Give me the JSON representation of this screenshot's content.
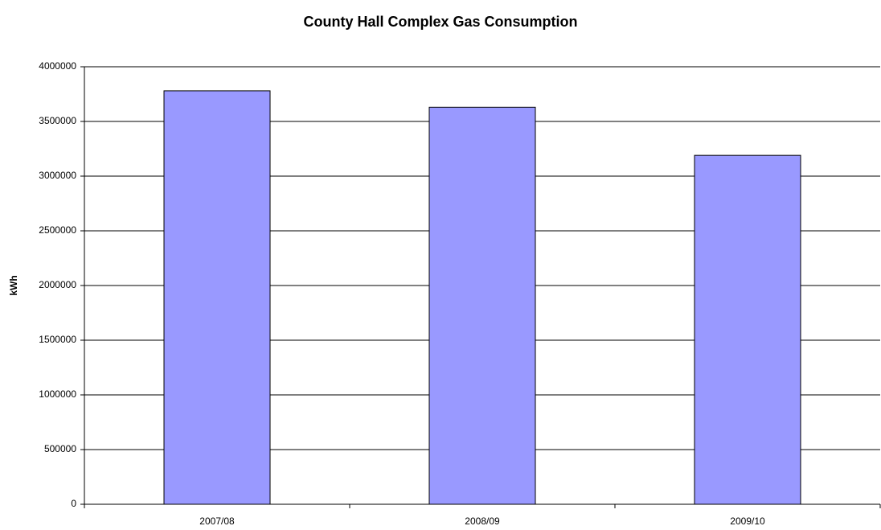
{
  "chart_data": {
    "type": "bar",
    "title": "County Hall Complex Gas Consumption",
    "y_label": "kWh",
    "categories": [
      "2007/08",
      "2008/09",
      "2009/10"
    ],
    "values": [
      3780000,
      3630000,
      3190000
    ],
    "color": "#9999ff",
    "ylim": [
      0,
      4000000
    ],
    "yticks": [
      0,
      500000,
      1000000,
      1500000,
      2000000,
      2500000,
      3000000,
      3500000,
      4000000
    ],
    "grid": true
  }
}
